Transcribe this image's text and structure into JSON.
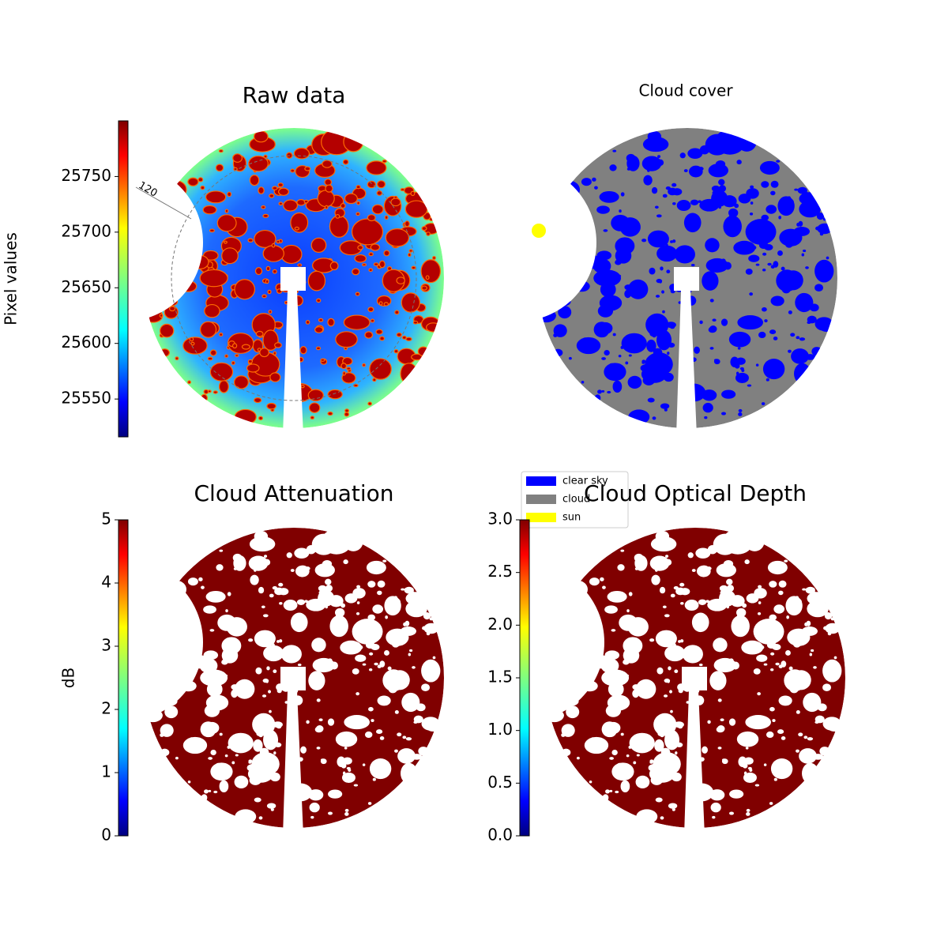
{
  "chart_data": [
    {
      "type": "image",
      "title": "Raw data",
      "annotations": [
        "120"
      ],
      "colorbar": {
        "label": "Pixel values",
        "colormap": "jet",
        "ylim": [
          25516,
          25800
        ],
        "yticks": [
          25550,
          25600,
          25650,
          25700,
          25750
        ]
      }
    },
    {
      "type": "image",
      "title": "Cloud cover",
      "legend": "lower left",
      "series": [
        {
          "name": "clear sky",
          "color": "#0000ff"
        },
        {
          "name": "cloud",
          "color": "#808080"
        },
        {
          "name": "sun",
          "color": "#ffff00"
        }
      ]
    },
    {
      "type": "image",
      "title": "Cloud Attenuation",
      "colorbar": {
        "label": "dB",
        "colormap": "jet",
        "ylim": [
          0,
          5
        ],
        "yticks": [
          0,
          1,
          2,
          3,
          4,
          5
        ]
      }
    },
    {
      "type": "image",
      "title": "Cloud Optical Depth",
      "colorbar": {
        "colormap": "jet",
        "ylim": [
          0,
          3
        ],
        "yticks": [
          {
            "value": 0,
            "label": "0.0"
          },
          {
            "value": 0.5,
            "label": "0.5"
          },
          {
            "value": 1,
            "label": "1.0"
          },
          {
            "value": 1.5,
            "label": "1.5"
          },
          {
            "value": 2,
            "label": "2.0"
          },
          {
            "value": 2.5,
            "label": "2.5"
          },
          {
            "value": 3,
            "label": "3.0"
          }
        ]
      }
    }
  ]
}
